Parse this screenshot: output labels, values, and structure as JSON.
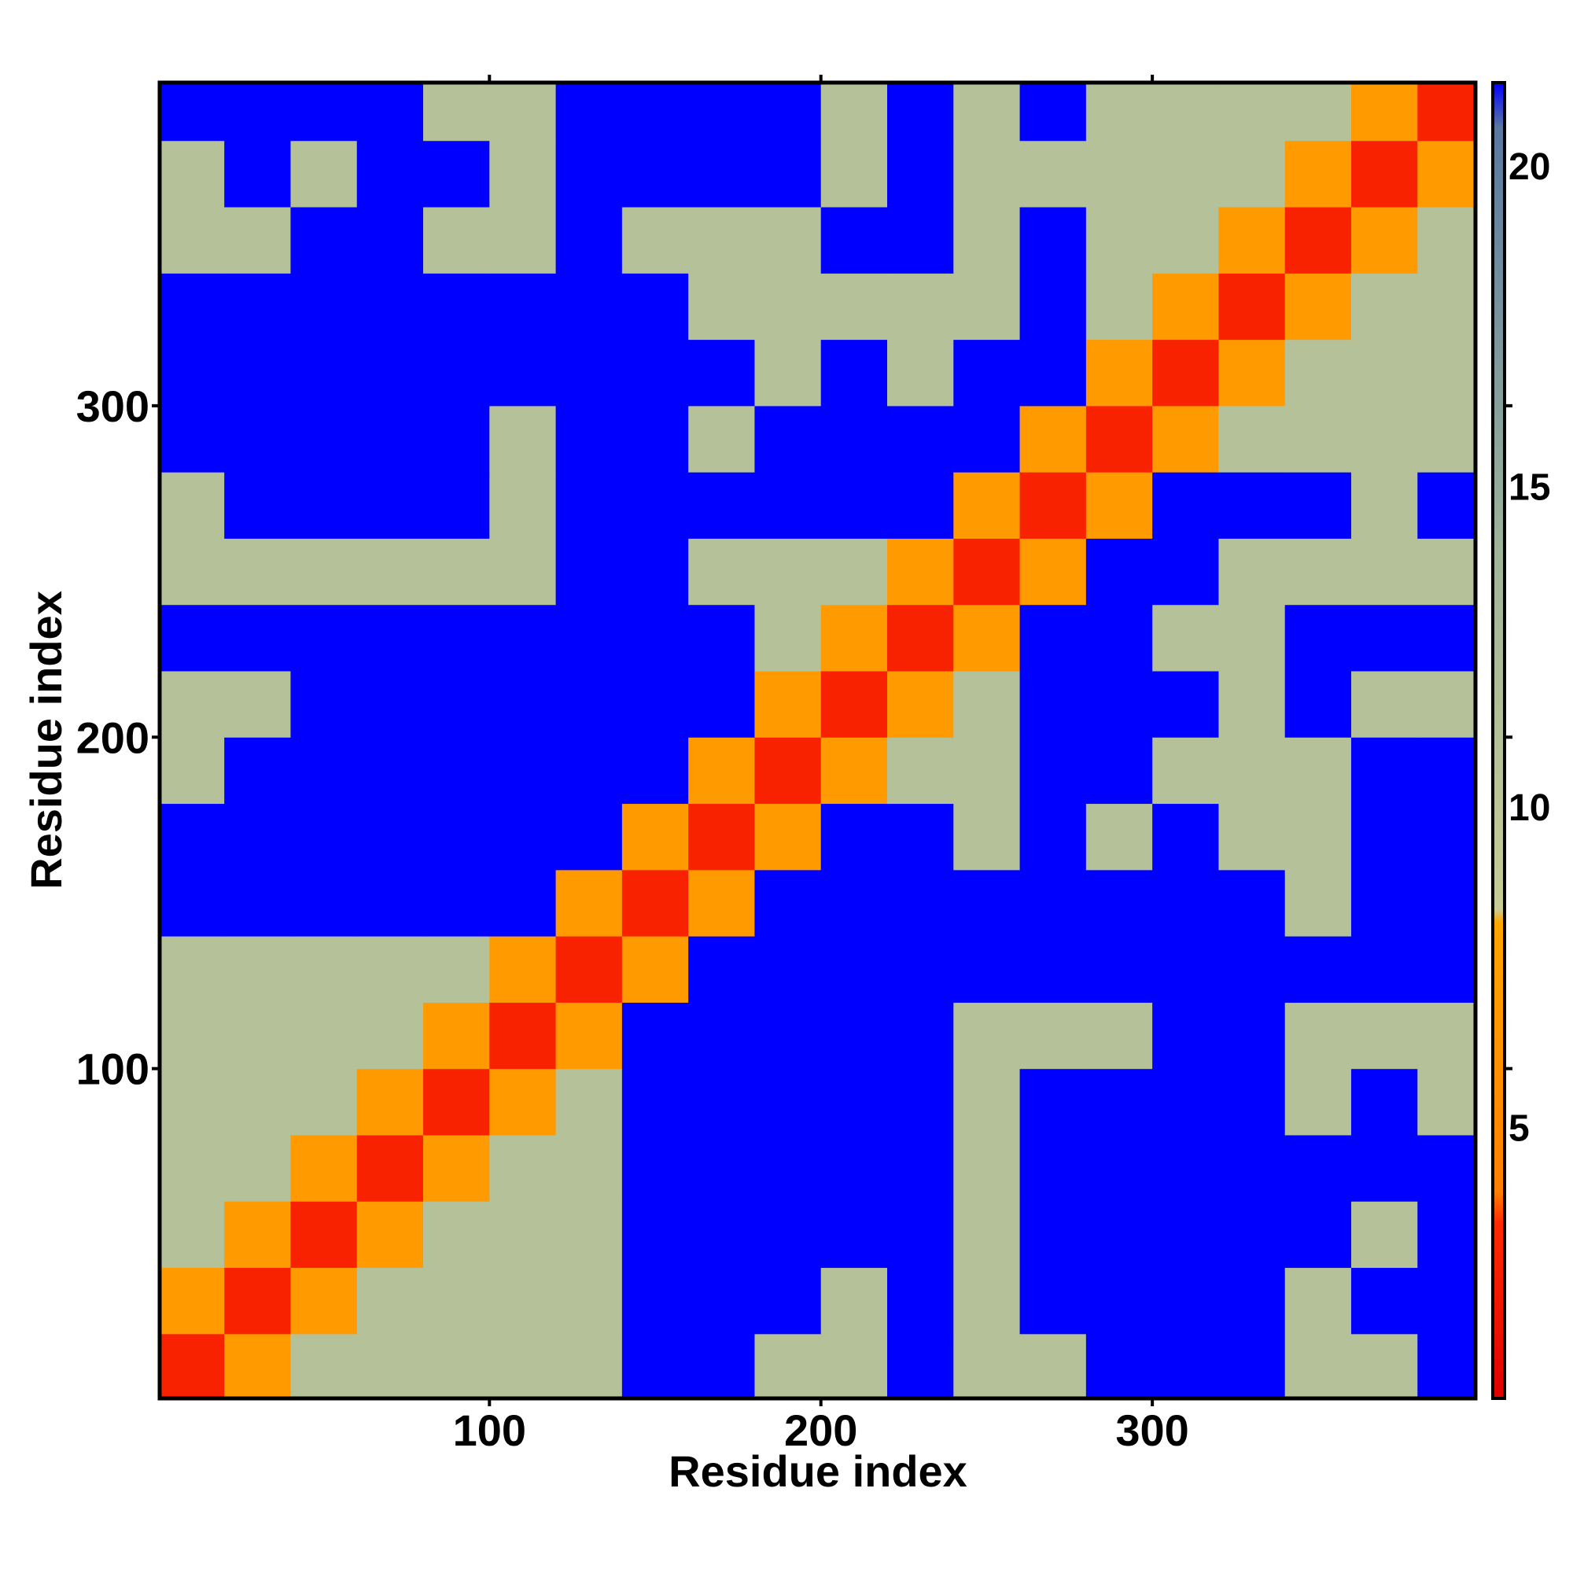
{
  "chart_data": {
    "type": "heatmap",
    "xlabel": "Residue index",
    "ylabel": "Residue index",
    "x": [
      10,
      30,
      50,
      70,
      90,
      110,
      130,
      150,
      170,
      190,
      210,
      230,
      250,
      270,
      290,
      310,
      330,
      350,
      370,
      390
    ],
    "y": [
      10,
      30,
      50,
      70,
      90,
      110,
      130,
      150,
      170,
      190,
      210,
      230,
      250,
      270,
      290,
      310,
      330,
      350,
      370,
      390
    ],
    "z": [
      [
        3,
        7,
        11,
        11,
        11,
        11,
        11,
        21.3,
        21.3,
        11,
        11,
        21.3,
        11,
        11,
        21.3,
        21.3,
        21.3,
        11,
        11,
        21.3
      ],
      [
        7,
        3,
        7,
        11,
        11,
        11,
        11,
        21.3,
        21.3,
        21.3,
        11,
        21.3,
        11,
        21.3,
        21.3,
        21.3,
        21.3,
        11,
        21.3,
        21.3
      ],
      [
        11,
        7,
        3,
        7,
        11,
        11,
        11,
        21.3,
        21.3,
        21.3,
        21.3,
        21.3,
        11,
        21.3,
        21.3,
        21.3,
        21.3,
        21.3,
        11,
        21.3
      ],
      [
        11,
        11,
        7,
        3,
        7,
        11,
        11,
        21.3,
        21.3,
        21.3,
        21.3,
        21.3,
        11,
        21.3,
        21.3,
        21.3,
        21.3,
        21.3,
        21.3,
        21.3
      ],
      [
        11,
        11,
        11,
        7,
        3,
        7,
        11,
        21.3,
        21.3,
        21.3,
        21.3,
        21.3,
        11,
        21.3,
        21.3,
        21.3,
        21.3,
        11,
        21.3,
        11
      ],
      [
        11,
        11,
        11,
        11,
        7,
        3,
        7,
        21.3,
        21.3,
        21.3,
        21.3,
        21.3,
        11,
        11,
        11,
        21.3,
        21.3,
        11,
        11,
        11
      ],
      [
        11,
        11,
        11,
        11,
        11,
        7,
        3,
        7,
        21.3,
        21.3,
        21.3,
        21.3,
        21.3,
        21.3,
        21.3,
        21.3,
        21.3,
        21.3,
        21.3,
        21.3
      ],
      [
        21.3,
        21.3,
        21.3,
        21.3,
        21.3,
        21.3,
        7,
        3,
        7,
        21.3,
        21.3,
        21.3,
        21.3,
        21.3,
        21.3,
        21.3,
        21.3,
        11,
        21.3,
        21.3
      ],
      [
        21.3,
        21.3,
        21.3,
        21.3,
        21.3,
        21.3,
        21.3,
        7,
        3,
        7,
        21.3,
        21.3,
        11,
        21.3,
        11,
        21.3,
        11,
        11,
        21.3,
        21.3
      ],
      [
        11,
        21.3,
        21.3,
        21.3,
        21.3,
        21.3,
        21.3,
        21.3,
        7,
        3,
        7,
        11,
        11,
        21.3,
        21.3,
        11,
        11,
        11,
        21.3,
        21.3
      ],
      [
        11,
        11,
        21.3,
        21.3,
        21.3,
        21.3,
        21.3,
        21.3,
        21.3,
        7,
        3,
        7,
        11,
        21.3,
        21.3,
        21.3,
        11,
        21.3,
        11,
        11
      ],
      [
        21.3,
        21.3,
        21.3,
        21.3,
        21.3,
        21.3,
        21.3,
        21.3,
        21.3,
        11,
        7,
        3,
        7,
        21.3,
        21.3,
        11,
        11,
        21.3,
        21.3,
        21.3
      ],
      [
        11,
        11,
        11,
        11,
        11,
        11,
        21.3,
        21.3,
        11,
        11,
        11,
        7,
        3,
        7,
        21.3,
        21.3,
        11,
        11,
        11,
        11
      ],
      [
        11,
        21.3,
        21.3,
        21.3,
        21.3,
        11,
        21.3,
        21.3,
        21.3,
        21.3,
        21.3,
        21.3,
        7,
        3,
        7,
        21.3,
        21.3,
        21.3,
        11,
        21.3
      ],
      [
        21.3,
        21.3,
        21.3,
        21.3,
        21.3,
        11,
        21.3,
        21.3,
        11,
        21.3,
        21.3,
        21.3,
        21.3,
        7,
        3,
        7,
        11,
        11,
        11,
        11
      ],
      [
        21.3,
        21.3,
        21.3,
        21.3,
        21.3,
        21.3,
        21.3,
        21.3,
        21.3,
        11,
        21.3,
        11,
        21.3,
        21.3,
        7,
        3,
        7,
        11,
        11,
        11
      ],
      [
        21.3,
        21.3,
        21.3,
        21.3,
        21.3,
        21.3,
        21.3,
        21.3,
        11,
        11,
        11,
        11,
        11,
        21.3,
        11,
        7,
        3,
        7,
        11,
        11
      ],
      [
        11,
        11,
        21.3,
        21.3,
        11,
        11,
        21.3,
        11,
        11,
        11,
        21.3,
        21.3,
        11,
        21.3,
        11,
        11,
        7,
        3,
        7,
        11
      ],
      [
        11,
        21.3,
        11,
        21.3,
        21.3,
        11,
        21.3,
        21.3,
        21.3,
        21.3,
        11,
        21.3,
        11,
        11,
        11,
        11,
        11,
        7,
        3,
        7
      ],
      [
        21.3,
        21.3,
        21.3,
        21.3,
        11,
        11,
        21.3,
        21.3,
        21.3,
        21.3,
        11,
        21.3,
        11,
        21.3,
        11,
        11,
        11,
        11,
        7,
        3
      ]
    ],
    "xlim": [
      0.5,
      397.5
    ],
    "ylim": [
      0.5,
      397.5
    ],
    "xticks": [
      100,
      200,
      300
    ],
    "yticks": [
      100,
      200,
      300
    ],
    "clim": [
      0.77,
      21.3
    ],
    "cticks": [
      5,
      10,
      15,
      20
    ],
    "colorscale": [
      [
        0.77,
        "#e00000"
      ],
      [
        3.5,
        "#ff2a00"
      ],
      [
        4,
        "#ff7f00"
      ],
      [
        8.2,
        "#ffa500"
      ],
      [
        8.4,
        "#c8cc96"
      ],
      [
        14,
        "#9fb49a"
      ],
      [
        20.6,
        "#5a78a0"
      ],
      [
        21.3,
        "#0000ff"
      ]
    ]
  }
}
